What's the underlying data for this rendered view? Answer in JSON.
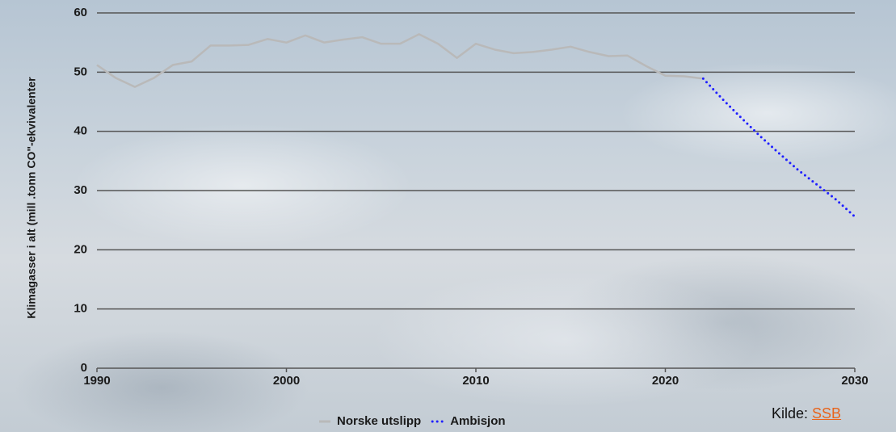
{
  "chart_data": {
    "type": "line",
    "y_label": "Klimagasser i alt (mill .tonn CO\"-ekvivalenter",
    "xlim": [
      1990,
      2030
    ],
    "xticks": [
      1990,
      2000,
      2010,
      2020,
      2030
    ],
    "ylim": [
      0,
      60
    ],
    "yticks": [
      0,
      10,
      20,
      30,
      40,
      50,
      60
    ],
    "grid": true,
    "series": [
      {
        "name": "Norske utslipp",
        "color": "#b9b9b9",
        "style": "solid",
        "x": [
          1990,
          1991,
          1992,
          1993,
          1994,
          1995,
          1996,
          1997,
          1998,
          1999,
          2000,
          2001,
          2002,
          2003,
          2004,
          2005,
          2006,
          2007,
          2008,
          2009,
          2010,
          2011,
          2012,
          2013,
          2014,
          2015,
          2016,
          2017,
          2018,
          2019,
          2020,
          2021,
          2022
        ],
        "values": [
          51.2,
          49.0,
          47.5,
          49.0,
          51.2,
          51.8,
          54.5,
          54.5,
          54.6,
          55.6,
          55.0,
          56.2,
          55.0,
          55.5,
          55.9,
          54.8,
          54.8,
          56.4,
          54.8,
          52.4,
          54.8,
          53.8,
          53.2,
          53.4,
          53.8,
          54.3,
          53.4,
          52.7,
          52.8,
          51.0,
          49.4,
          49.3,
          48.9
        ]
      },
      {
        "name": "Ambisjon",
        "color": "#1f1fff",
        "style": "dotted",
        "x": [
          2022,
          2023,
          2024,
          2025,
          2026,
          2027,
          2028,
          2029,
          2030
        ],
        "values": [
          48.9,
          45.5,
          42.3,
          39.2,
          36.3,
          33.5,
          31.0,
          28.5,
          25.6
        ]
      }
    ],
    "source": {
      "label": "Kilde:",
      "link": "SSB"
    }
  }
}
